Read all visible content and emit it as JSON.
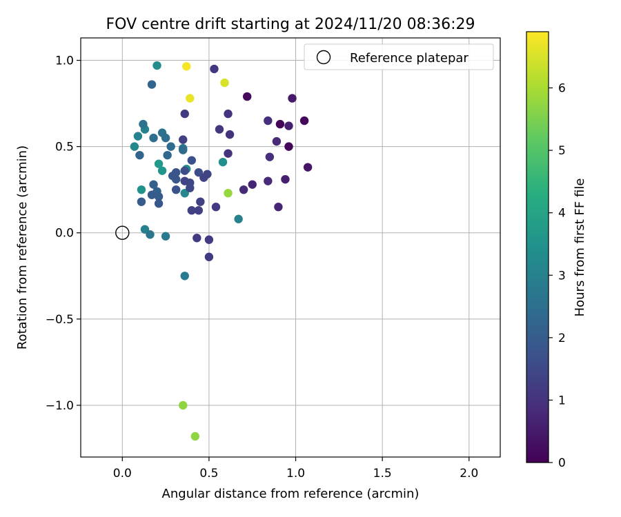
{
  "chart_data": {
    "type": "scatter",
    "title": "FOV centre drift starting at 2024/11/20 08:36:29",
    "xlabel": "Angular distance from reference (arcmin)",
    "ylabel": "Rotation from reference (arcmin)",
    "xlim": [
      -0.24,
      2.18
    ],
    "ylim": [
      -1.3,
      1.13
    ],
    "xticks": [
      0.0,
      0.5,
      1.0,
      1.5,
      2.0
    ],
    "xtick_labels": [
      "0.0",
      "0.5",
      "1.0",
      "1.5",
      "2.0"
    ],
    "yticks": [
      -1.0,
      -0.5,
      0.0,
      0.5,
      1.0
    ],
    "ytick_labels": [
      "−1.0",
      "−0.5",
      "0.0",
      "0.5",
      "1.0"
    ],
    "grid": true,
    "legend": {
      "position": "top-right",
      "label": "Reference platepar"
    },
    "reference_point": {
      "x": 0.0,
      "y": 0.0
    },
    "colorbar": {
      "label": "Hours from first FF file",
      "colormap": "viridis",
      "range": [
        0,
        6.9
      ],
      "ticks": [
        0,
        1,
        2,
        3,
        4,
        5,
        6
      ],
      "tick_labels": [
        "0",
        "1",
        "2",
        "3",
        "4",
        "5",
        "6"
      ]
    },
    "points": [
      {
        "x": 0.37,
        "y": 0.965,
        "hours": 6.8
      },
      {
        "x": 0.39,
        "y": 0.78,
        "hours": 6.7
      },
      {
        "x": 0.59,
        "y": 0.87,
        "hours": 6.5
      },
      {
        "x": 0.61,
        "y": 0.23,
        "hours": 5.8
      },
      {
        "x": 0.35,
        "y": -1.0,
        "hours": 5.7
      },
      {
        "x": 0.42,
        "y": -1.18,
        "hours": 5.7
      },
      {
        "x": 0.2,
        "y": 0.97,
        "hours": 3.3
      },
      {
        "x": 0.21,
        "y": 0.4,
        "hours": 3.7
      },
      {
        "x": 0.23,
        "y": 0.36,
        "hours": 3.6
      },
      {
        "x": 0.11,
        "y": 0.25,
        "hours": 3.5
      },
      {
        "x": 0.58,
        "y": 0.41,
        "hours": 3.4
      },
      {
        "x": 0.37,
        "y": 0.37,
        "hours": 3.3
      },
      {
        "x": 0.36,
        "y": 0.23,
        "hours": 3.2
      },
      {
        "x": 0.07,
        "y": 0.5,
        "hours": 3.2
      },
      {
        "x": 0.09,
        "y": 0.56,
        "hours": 3.1
      },
      {
        "x": 0.13,
        "y": 0.6,
        "hours": 3.0
      },
      {
        "x": 0.67,
        "y": 0.08,
        "hours": 3.0
      },
      {
        "x": 0.13,
        "y": 0.02,
        "hours": 3.0
      },
      {
        "x": 0.36,
        "y": -0.25,
        "hours": 2.8
      },
      {
        "x": 0.25,
        "y": -0.02,
        "hours": 2.8
      },
      {
        "x": 0.35,
        "y": 0.49,
        "hours": 2.7
      },
      {
        "x": 0.16,
        "y": -0.01,
        "hours": 2.7
      },
      {
        "x": 0.12,
        "y": 0.63,
        "hours": 2.6
      },
      {
        "x": 0.23,
        "y": 0.58,
        "hours": 2.6
      },
      {
        "x": 0.18,
        "y": 0.55,
        "hours": 2.5
      },
      {
        "x": 0.25,
        "y": 0.55,
        "hours": 2.5
      },
      {
        "x": 0.28,
        "y": 0.5,
        "hours": 2.4
      },
      {
        "x": 0.35,
        "y": 0.48,
        "hours": 2.4
      },
      {
        "x": 0.26,
        "y": 0.45,
        "hours": 2.3
      },
      {
        "x": 0.17,
        "y": 0.86,
        "hours": 2.2
      },
      {
        "x": 0.1,
        "y": 0.45,
        "hours": 2.2
      },
      {
        "x": 0.18,
        "y": 0.28,
        "hours": 2.1
      },
      {
        "x": 0.2,
        "y": 0.24,
        "hours": 2.1
      },
      {
        "x": 0.17,
        "y": 0.22,
        "hours": 2.0
      },
      {
        "x": 0.21,
        "y": 0.21,
        "hours": 2.0
      },
      {
        "x": 0.11,
        "y": 0.18,
        "hours": 2.0
      },
      {
        "x": 0.21,
        "y": 0.17,
        "hours": 1.9
      },
      {
        "x": 0.31,
        "y": 0.31,
        "hours": 1.9
      },
      {
        "x": 0.31,
        "y": 0.35,
        "hours": 1.8
      },
      {
        "x": 0.29,
        "y": 0.33,
        "hours": 1.8
      },
      {
        "x": 0.31,
        "y": 0.25,
        "hours": 1.7
      },
      {
        "x": 0.4,
        "y": 0.42,
        "hours": 1.7
      },
      {
        "x": 0.36,
        "y": 0.36,
        "hours": 1.6
      },
      {
        "x": 0.44,
        "y": 0.35,
        "hours": 1.6
      },
      {
        "x": 0.39,
        "y": 0.29,
        "hours": 1.5
      },
      {
        "x": 0.39,
        "y": 0.26,
        "hours": 1.5
      },
      {
        "x": 0.47,
        "y": 0.32,
        "hours": 1.4
      },
      {
        "x": 0.49,
        "y": 0.34,
        "hours": 1.4
      },
      {
        "x": 0.36,
        "y": 0.3,
        "hours": 1.4
      },
      {
        "x": 0.45,
        "y": 0.18,
        "hours": 1.3
      },
      {
        "x": 0.4,
        "y": 0.13,
        "hours": 1.3
      },
      {
        "x": 0.44,
        "y": 0.13,
        "hours": 1.3
      },
      {
        "x": 0.43,
        "y": -0.03,
        "hours": 1.2
      },
      {
        "x": 0.5,
        "y": -0.04,
        "hours": 1.2
      },
      {
        "x": 0.5,
        "y": -0.14,
        "hours": 1.2
      },
      {
        "x": 0.54,
        "y": 0.15,
        "hours": 1.2
      },
      {
        "x": 0.35,
        "y": 0.54,
        "hours": 1.3
      },
      {
        "x": 0.36,
        "y": 0.69,
        "hours": 1.2
      },
      {
        "x": 0.53,
        "y": 0.95,
        "hours": 1.1
      },
      {
        "x": 0.56,
        "y": 0.6,
        "hours": 1.1
      },
      {
        "x": 0.61,
        "y": 0.69,
        "hours": 1.0
      },
      {
        "x": 0.62,
        "y": 0.57,
        "hours": 1.0
      },
      {
        "x": 0.61,
        "y": 0.46,
        "hours": 1.0
      },
      {
        "x": 0.84,
        "y": 0.65,
        "hours": 0.9
      },
      {
        "x": 0.85,
        "y": 0.44,
        "hours": 0.9
      },
      {
        "x": 0.89,
        "y": 0.53,
        "hours": 0.8
      },
      {
        "x": 0.84,
        "y": 0.3,
        "hours": 0.8
      },
      {
        "x": 0.7,
        "y": 0.25,
        "hours": 0.8
      },
      {
        "x": 0.75,
        "y": 0.28,
        "hours": 0.7
      },
      {
        "x": 0.9,
        "y": 0.15,
        "hours": 0.7
      },
      {
        "x": 0.94,
        "y": 0.31,
        "hours": 0.6
      },
      {
        "x": 0.96,
        "y": 0.62,
        "hours": 0.6
      },
      {
        "x": 0.98,
        "y": 0.78,
        "hours": 0.5
      },
      {
        "x": 0.72,
        "y": 0.79,
        "hours": 0.2
      },
      {
        "x": 0.91,
        "y": 0.63,
        "hours": 0.1
      },
      {
        "x": 0.96,
        "y": 0.5,
        "hours": 0.1
      },
      {
        "x": 1.05,
        "y": 0.65,
        "hours": 0.1
      },
      {
        "x": 1.07,
        "y": 0.38,
        "hours": 0.4
      }
    ]
  }
}
